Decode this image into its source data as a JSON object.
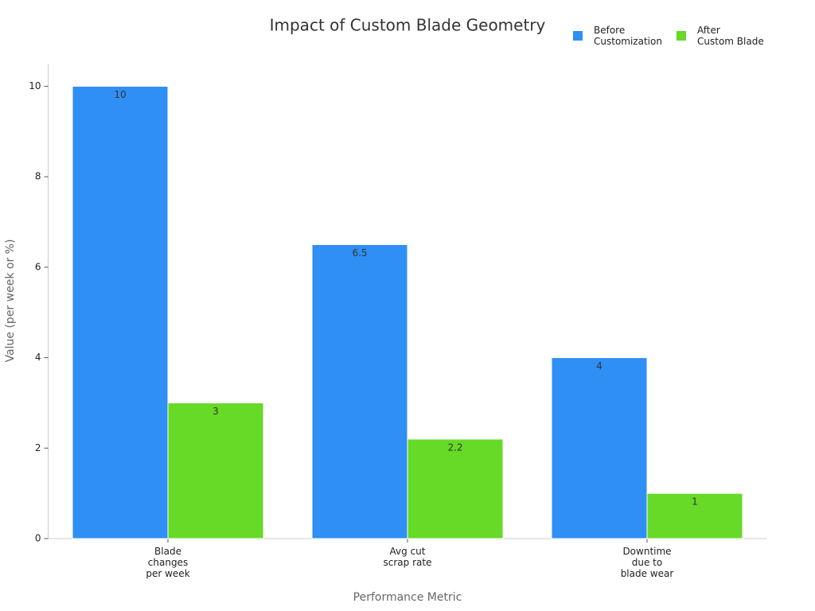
{
  "chart_data": {
    "type": "bar",
    "title": "Impact of Custom Blade Geometry",
    "x_label": "Performance Metric",
    "y_label": "Value (per week or %)",
    "categories": [
      "Blade\nchanges\nper week",
      "Avg cut\nscrap rate",
      "Downtime\ndue to\nblade wear"
    ],
    "series": [
      {
        "name": "Before\nCustomization",
        "color": "#2f8ff4",
        "values": [
          10,
          6.5,
          4
        ]
      },
      {
        "name": "After\nCustom Blade",
        "color": "#66da26",
        "values": [
          3,
          2.2,
          1
        ]
      }
    ],
    "ylim": [
      0,
      10.5
    ],
    "yticks": [
      0,
      2,
      4,
      6,
      8,
      10
    ],
    "grid": false,
    "legend": "top-right"
  }
}
